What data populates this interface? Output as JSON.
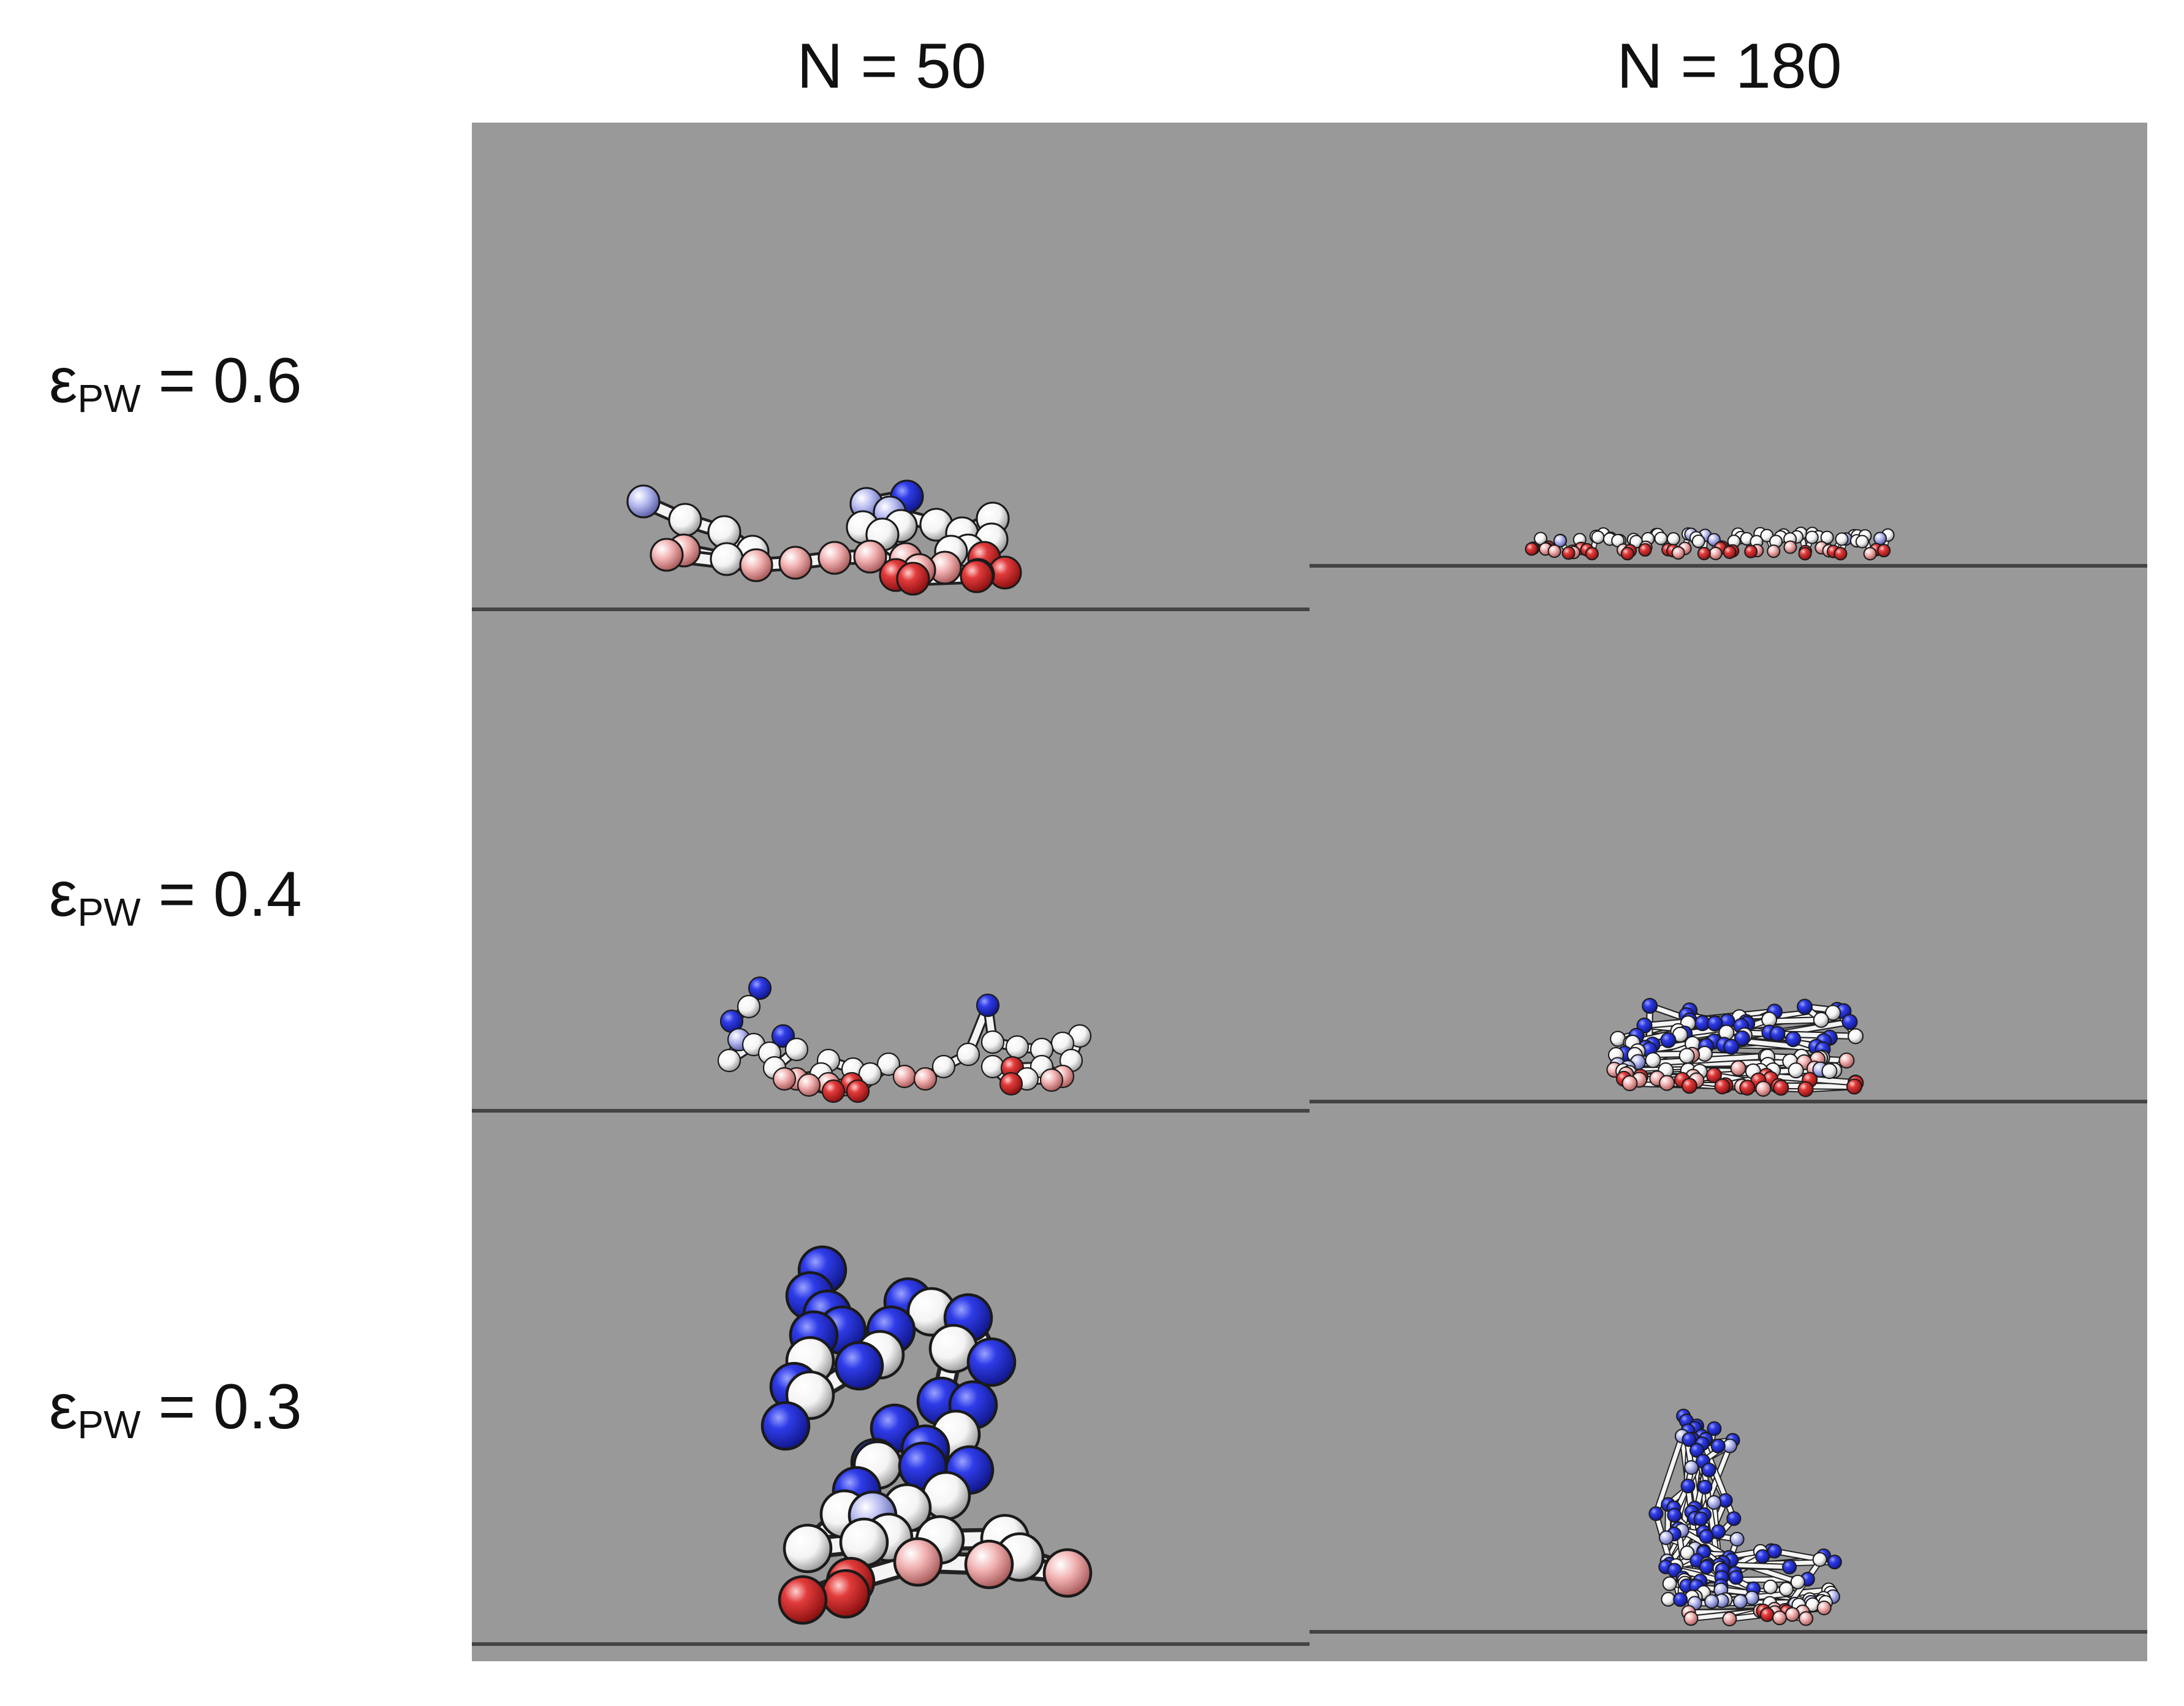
{
  "figure": {
    "columns": [
      {
        "label": "N = 50"
      },
      {
        "label": "N = 180"
      }
    ],
    "rows": [
      {
        "symbol": "ε",
        "subscript": "PW",
        "value_text": " = 0.6"
      },
      {
        "symbol": "ε",
        "subscript": "PW",
        "value_text": " = 0.4"
      },
      {
        "symbol": "ε",
        "subscript": "PW",
        "value_text": " = 0.3"
      }
    ],
    "panel_background": "#999999",
    "surface_line_color": "#444444",
    "bead_colors": {
      "low": "#dc2a2a",
      "mid": "#ffffff",
      "high": "#2b39e6"
    }
  }
}
